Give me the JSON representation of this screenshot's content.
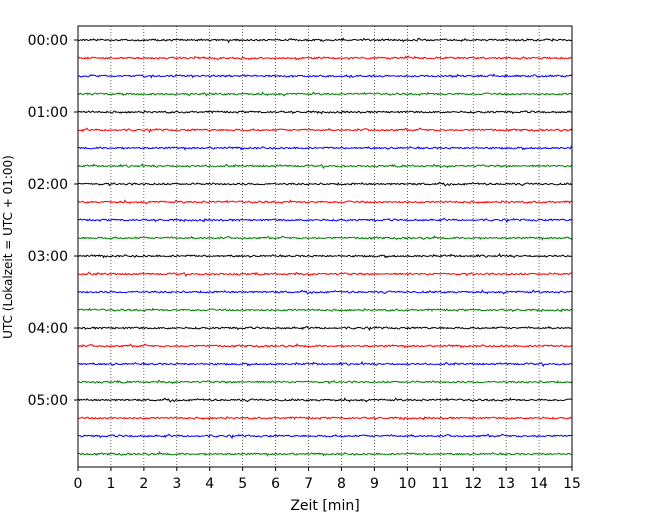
{
  "chart_data": {
    "type": "line",
    "title": "",
    "xlabel": "Zeit  [min]",
    "ylabel": "UTC (Lokalzeit = UTC + 01:00)",
    "xlim": [
      0,
      15
    ],
    "x_ticks": [
      "0",
      "1",
      "2",
      "3",
      "4",
      "5",
      "6",
      "7",
      "8",
      "9",
      "10",
      "11",
      "12",
      "13",
      "14",
      "15"
    ],
    "y_tick_labels": [
      "00:00",
      "01:00",
      "02:00",
      "03:00",
      "04:00",
      "05:00"
    ],
    "grid": "vertical dotted lines at each minute",
    "trace_interval": "15 min",
    "trace_colors": [
      "#000000",
      "#ff0000",
      "#0000ff",
      "#008000"
    ],
    "trace_starts": [
      "00:00",
      "00:15",
      "00:30",
      "00:45",
      "01:00",
      "01:15",
      "01:30",
      "01:45",
      "02:00",
      "02:15",
      "02:30",
      "02:45",
      "03:00",
      "03:15",
      "03:30",
      "03:45",
      "04:00",
      "04:15",
      "04:30",
      "04:45",
      "05:00",
      "05:15",
      "05:30",
      "05:45"
    ]
  }
}
